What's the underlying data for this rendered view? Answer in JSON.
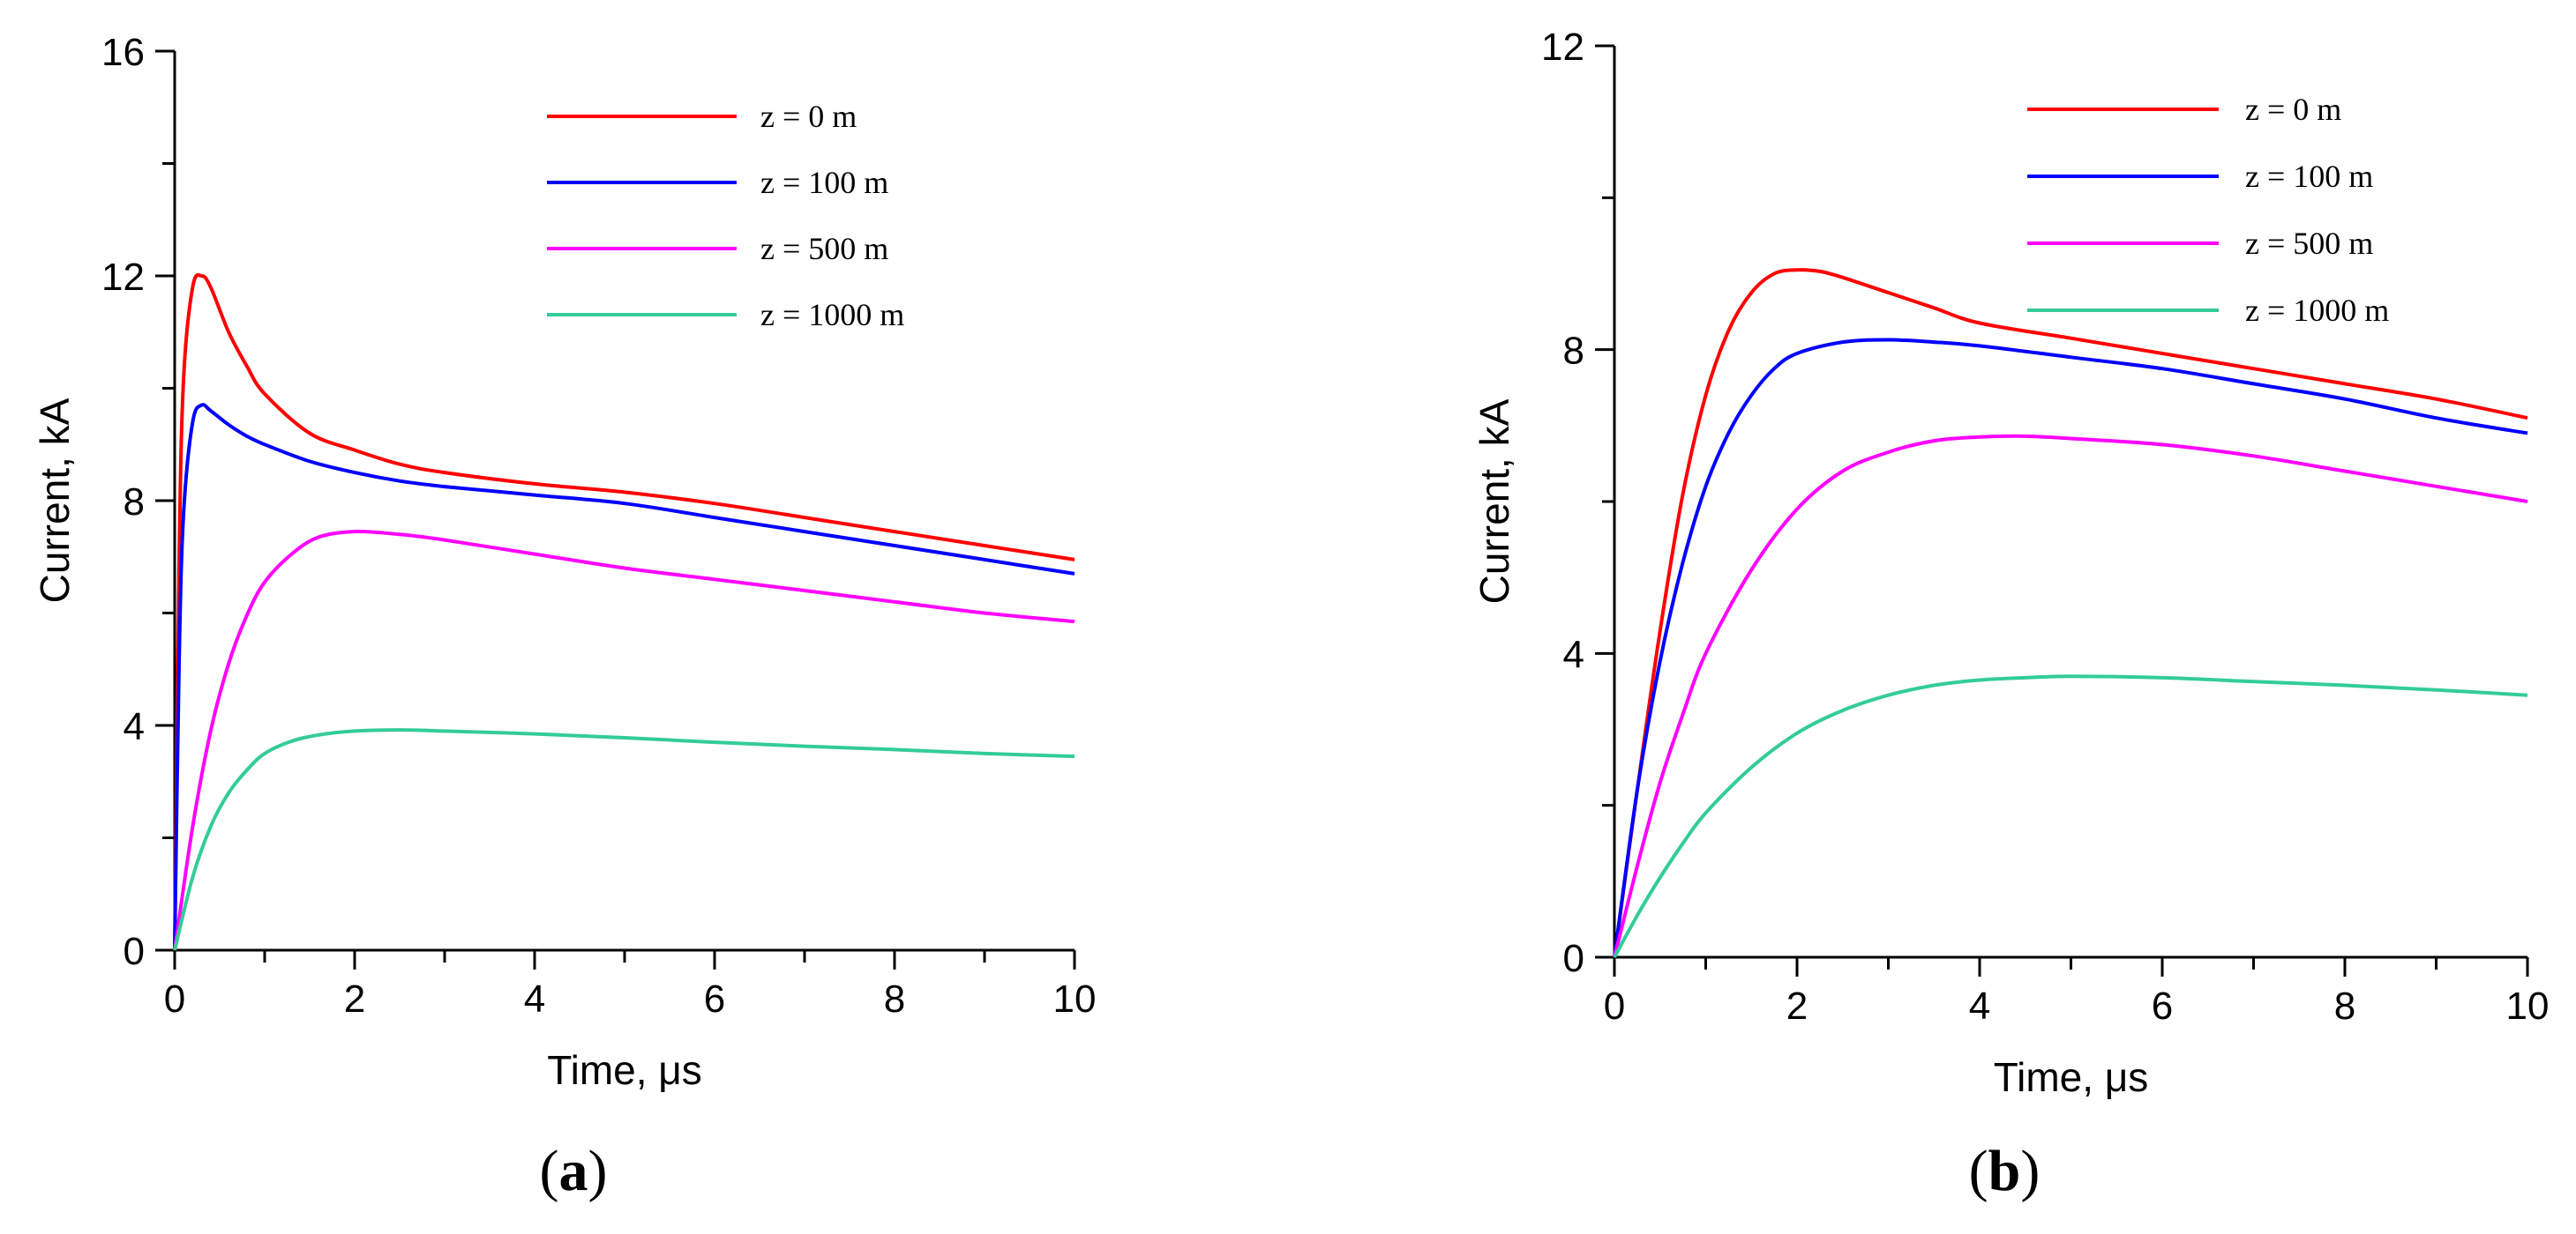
{
  "chart_data": [
    {
      "type": "line",
      "panel_label": "(a)",
      "panel_letter": "a",
      "xlabel": "Time, μs",
      "ylabel": "Current, kA",
      "xlim": [
        0,
        10
      ],
      "ylim": [
        0,
        16
      ],
      "xticks": [
        0,
        2,
        4,
        6,
        8,
        10
      ],
      "yticks": [
        0,
        4,
        8,
        12,
        16
      ],
      "legend_position": "top-right",
      "series": [
        {
          "name": "z = 0 m",
          "color": "#ff0000",
          "x": [
            0,
            0.05,
            0.1,
            0.2,
            0.3,
            0.4,
            0.6,
            0.8,
            1.0,
            1.5,
            2.0,
            2.5,
            3.0,
            4.0,
            5.0,
            6.0,
            7.0,
            8.0,
            9.0,
            10.0
          ],
          "y": [
            0,
            7.0,
            10.2,
            11.8,
            12.0,
            11.8,
            11.0,
            10.4,
            9.9,
            9.2,
            8.9,
            8.65,
            8.5,
            8.3,
            8.15,
            7.95,
            7.7,
            7.45,
            7.2,
            6.95
          ]
        },
        {
          "name": "z = 100 m",
          "color": "#0000ff",
          "x": [
            0,
            0.05,
            0.1,
            0.2,
            0.3,
            0.4,
            0.6,
            0.8,
            1.0,
            1.5,
            2.0,
            2.5,
            3.0,
            4.0,
            5.0,
            6.0,
            7.0,
            8.0,
            9.0,
            10.0
          ],
          "y": [
            0,
            5.2,
            7.8,
            9.4,
            9.7,
            9.6,
            9.35,
            9.15,
            9.0,
            8.7,
            8.5,
            8.35,
            8.25,
            8.1,
            7.95,
            7.7,
            7.45,
            7.2,
            6.95,
            6.7
          ]
        },
        {
          "name": "z = 500 m",
          "color": "#ff00ff",
          "x": [
            0,
            0.2,
            0.4,
            0.6,
            0.8,
            1.0,
            1.3,
            1.6,
            2.0,
            2.5,
            3.0,
            4.0,
            5.0,
            6.0,
            7.0,
            8.0,
            9.0,
            10.0
          ],
          "y": [
            0,
            2.2,
            3.9,
            5.1,
            5.95,
            6.55,
            7.05,
            7.35,
            7.45,
            7.4,
            7.3,
            7.05,
            6.8,
            6.6,
            6.4,
            6.2,
            6.0,
            5.85
          ]
        },
        {
          "name": "z = 1000 m",
          "color": "#33cc99",
          "x": [
            0,
            0.2,
            0.4,
            0.6,
            0.8,
            1.0,
            1.3,
            1.6,
            2.0,
            2.5,
            3.0,
            4.0,
            5.0,
            6.0,
            7.0,
            8.0,
            9.0,
            10.0
          ],
          "y": [
            0,
            1.3,
            2.2,
            2.8,
            3.2,
            3.5,
            3.72,
            3.83,
            3.9,
            3.92,
            3.9,
            3.85,
            3.78,
            3.7,
            3.63,
            3.57,
            3.5,
            3.45
          ]
        }
      ]
    },
    {
      "type": "line",
      "panel_label": "(b)",
      "panel_letter": "b",
      "xlabel": "Time, μs",
      "ylabel": "Current, kA",
      "xlim": [
        0,
        10
      ],
      "ylim": [
        0,
        12
      ],
      "xticks": [
        0,
        2,
        4,
        6,
        8,
        10
      ],
      "yticks": [
        0,
        4,
        8,
        12
      ],
      "legend_position": "top-right",
      "series": [
        {
          "name": "z = 0 m",
          "color": "#ff0000",
          "x": [
            0,
            0.25,
            0.5,
            0.75,
            1.0,
            1.25,
            1.5,
            1.75,
            2.0,
            2.25,
            2.5,
            3.0,
            3.5,
            4.0,
            5.0,
            6.0,
            7.0,
            8.0,
            9.0,
            10.0
          ],
          "y": [
            0,
            2.2,
            4.3,
            6.1,
            7.4,
            8.25,
            8.75,
            9.0,
            9.05,
            9.03,
            8.95,
            8.75,
            8.55,
            8.35,
            8.15,
            7.95,
            7.75,
            7.55,
            7.35,
            7.1
          ]
        },
        {
          "name": "z = 100 m",
          "color": "#0000ff",
          "x": [
            0,
            0.25,
            0.5,
            0.75,
            1.0,
            1.25,
            1.5,
            1.75,
            2.0,
            2.5,
            3.0,
            3.5,
            4.0,
            5.0,
            6.0,
            7.0,
            8.0,
            9.0,
            10.0
          ],
          "y": [
            0,
            2.2,
            3.9,
            5.2,
            6.2,
            6.9,
            7.4,
            7.75,
            7.95,
            8.1,
            8.13,
            8.1,
            8.05,
            7.9,
            7.75,
            7.55,
            7.35,
            7.1,
            6.9
          ]
        },
        {
          "name": "z = 500 m",
          "color": "#ff00ff",
          "x": [
            0,
            0.25,
            0.5,
            0.75,
            1.0,
            1.5,
            2.0,
            2.5,
            3.0,
            3.5,
            4.0,
            4.5,
            5.0,
            6.0,
            7.0,
            8.0,
            9.0,
            10.0
          ],
          "y": [
            0,
            1.2,
            2.3,
            3.2,
            4.0,
            5.1,
            5.9,
            6.4,
            6.65,
            6.8,
            6.85,
            6.86,
            6.83,
            6.75,
            6.6,
            6.4,
            6.2,
            6.0
          ]
        },
        {
          "name": "z = 1000 m",
          "color": "#33cc99",
          "x": [
            0,
            0.25,
            0.5,
            0.75,
            1.0,
            1.5,
            2.0,
            2.5,
            3.0,
            3.5,
            4.0,
            4.5,
            5.0,
            6.0,
            7.0,
            8.0,
            9.0,
            10.0
          ],
          "y": [
            0,
            0.55,
            1.05,
            1.5,
            1.9,
            2.5,
            2.95,
            3.25,
            3.45,
            3.58,
            3.65,
            3.68,
            3.7,
            3.68,
            3.63,
            3.58,
            3.52,
            3.45
          ]
        }
      ]
    }
  ]
}
